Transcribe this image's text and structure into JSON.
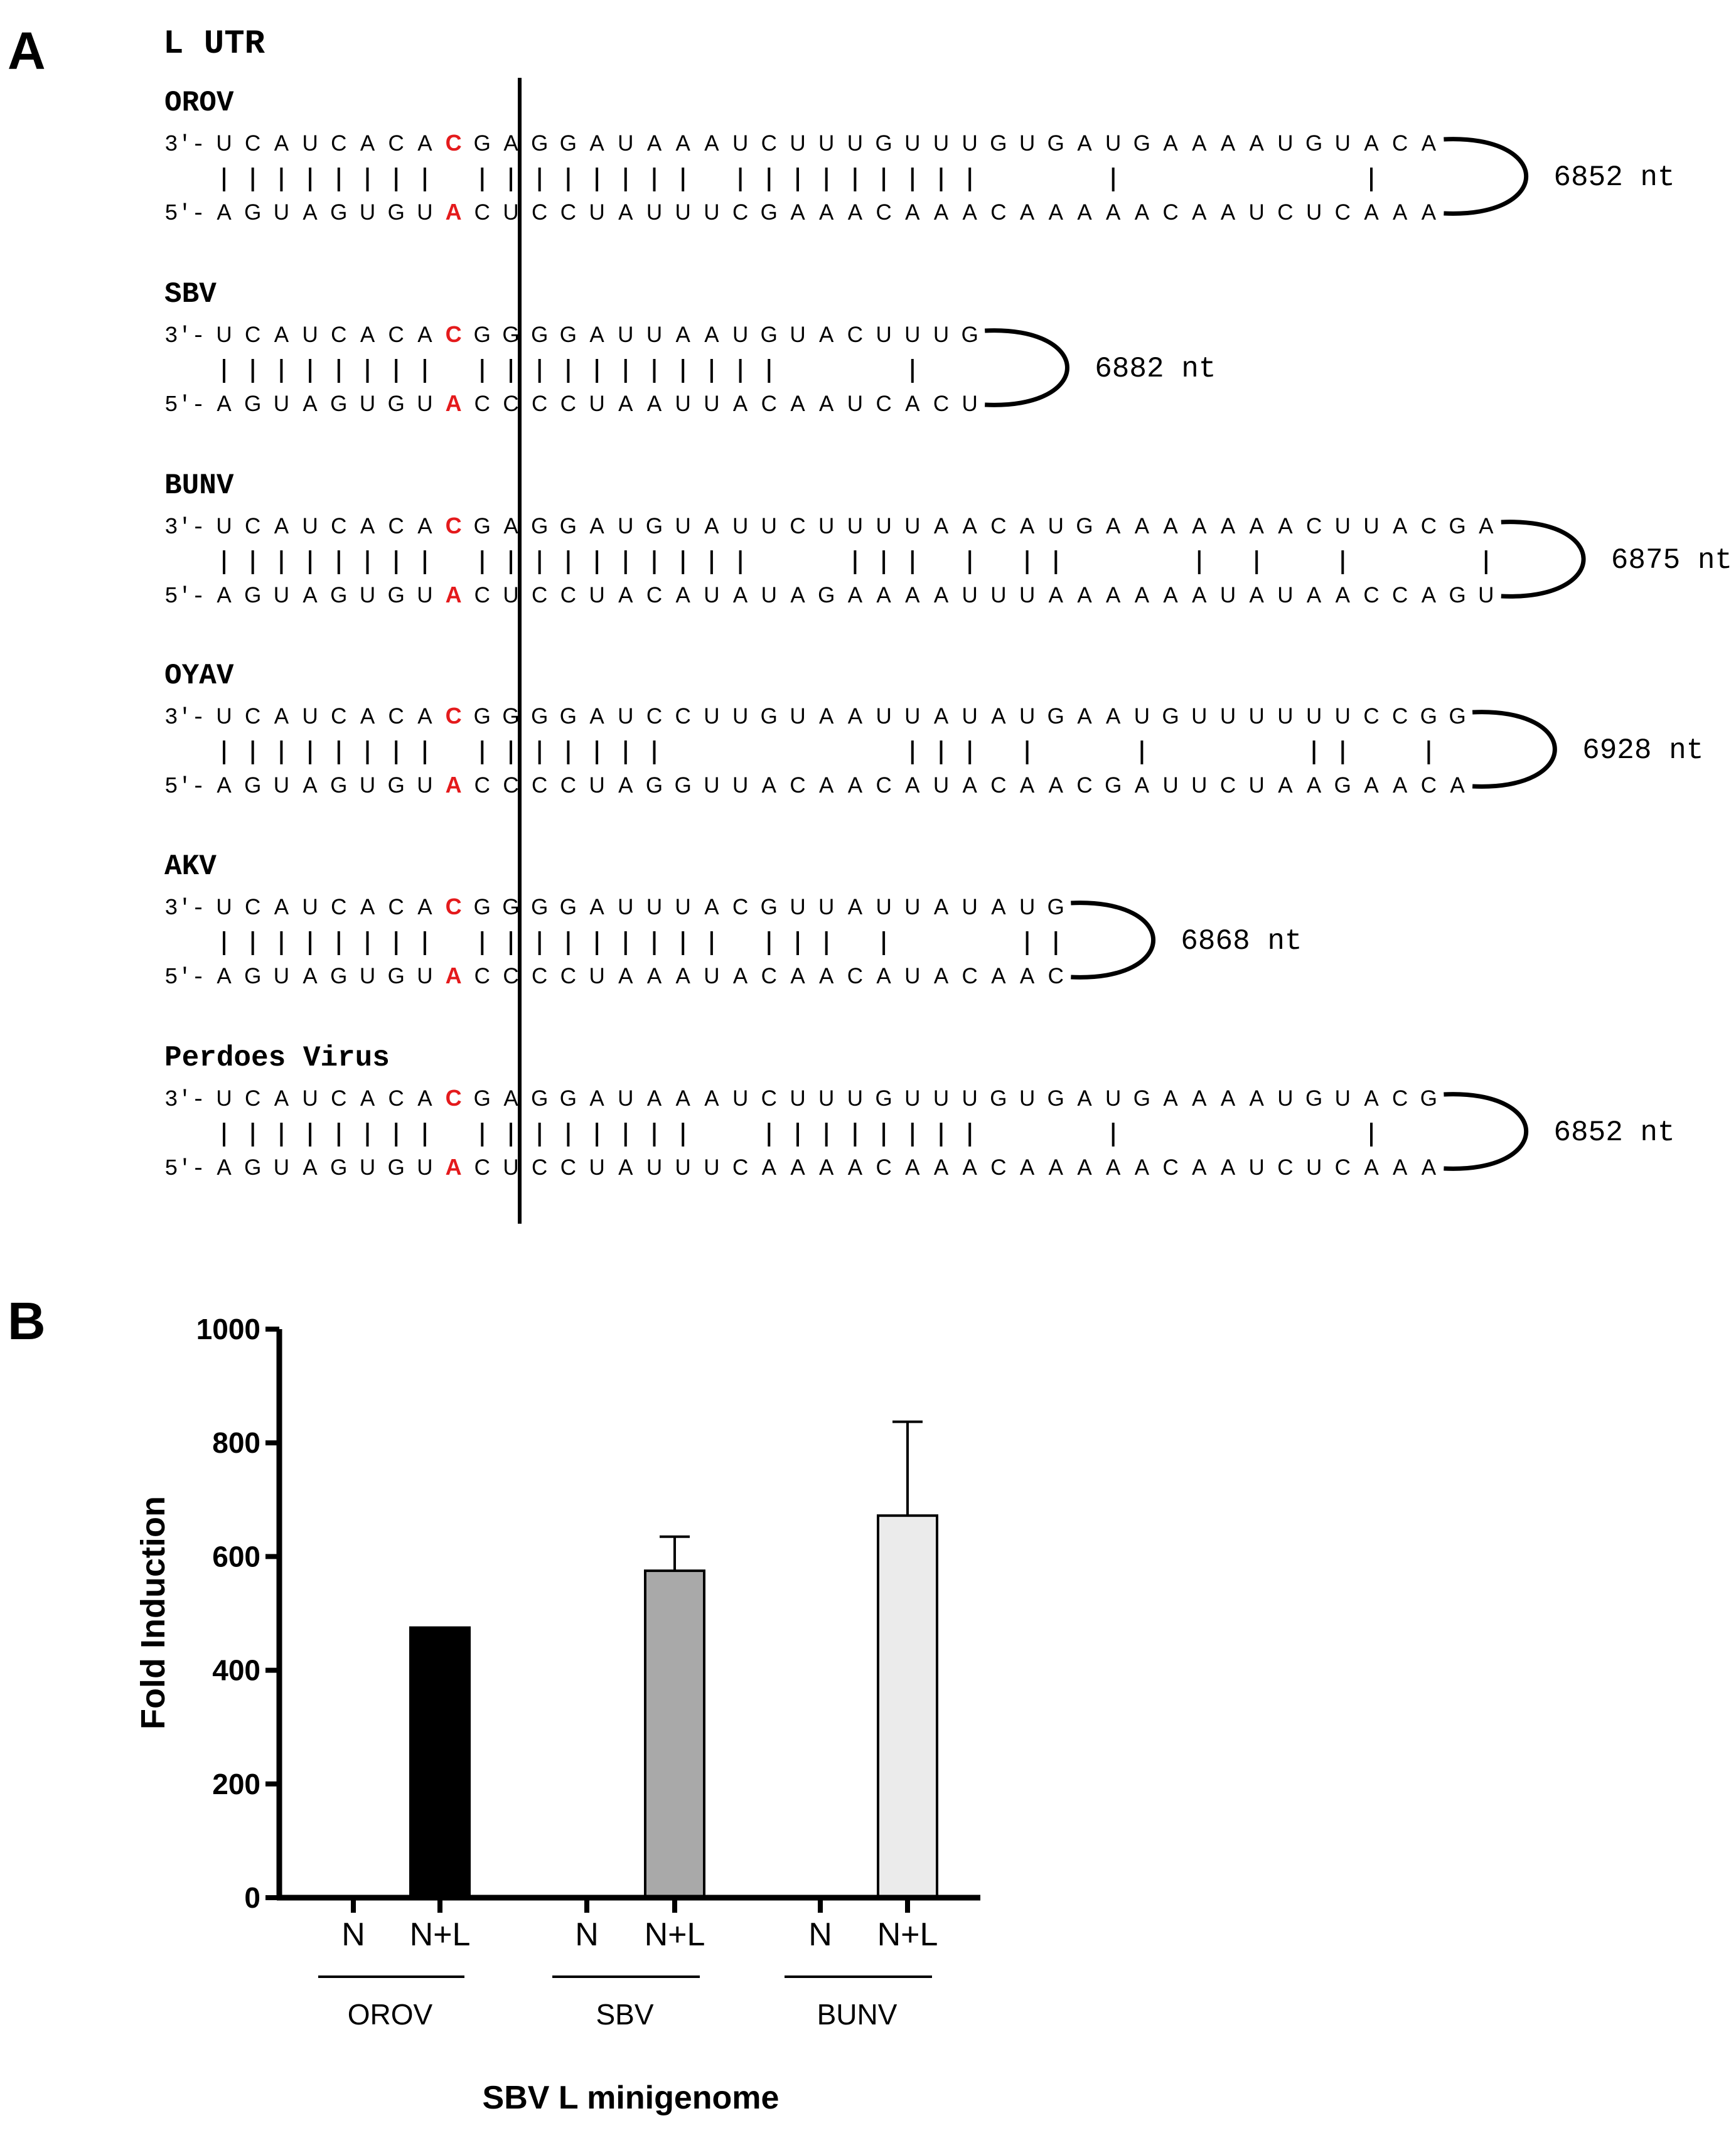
{
  "panels": {
    "a_letter": "A",
    "b_letter": "B",
    "a_title": "L UTR"
  },
  "colors": {
    "highlight": "#e41a1c",
    "ink": "#000000",
    "orov_bar": "#000000",
    "sbv_bar": "#a9a9a9",
    "bunv_bar": "#ebebeb"
  },
  "alignments": [
    {
      "name": "OROV",
      "top_prefix": "3′-",
      "bottom_prefix": "5′-",
      "top": "UCAUCACACGAGGAUAAAUCUUUGUUUGUGAUGAAAAUGUACA",
      "bottom": "AGUAGUGUACUCCUAUUUCGAAACAAACAAAAACAAUCUCAAA",
      "pairs": "1111111101111111101111111110000100000000100",
      "length": "6852 nt"
    },
    {
      "name": "SBV",
      "top_prefix": "3′-",
      "bottom_prefix": "5′-",
      "top": "UCAUCACACGGGGAUUAAUGUACUUUG",
      "bottom": "AGUAGUGUACCCCUAAUUACAAUCACU",
      "pairs": "111111110111111111110000100",
      "length": "6882 nt"
    },
    {
      "name": "BUNV",
      "top_prefix": "3′-",
      "bottom_prefix": "5′-",
      "top": "UCAUCACACGAGGAUGUAUUCUUUUAACAUGAAAAAAACUUACGA",
      "bottom": "AGUAGUGUACUCCUACAUAUAGAAAAUUUAAAAAAUAUAACCAGU",
      "pairs": "111111110111111111100011101011000010100100001",
      "length": "6875 nt"
    },
    {
      "name": "OYAV",
      "top_prefix": "3′-",
      "bottom_prefix": "5′-",
      "top": "UCAUCACACGGGGAUCCUUGUAAUUAUAUGAAUGUUUUUUCCGG",
      "bottom": "AGUAGUGUACCCCUAGGUUACAACAUACAACGAUUCUAAGAACA",
      "pairs": "11111111011111110000000011101000100000110010",
      "length": "6928 nt"
    },
    {
      "name": "AKV",
      "top_prefix": "3′-",
      "bottom_prefix": "5′-",
      "top": "UCAUCACACGGGGAUUUACGUUAUUAUAUG",
      "bottom": "AGUAGUGUACCCCUAAAUACAACAUACAAC",
      "pairs": "111111110111111111011101000011",
      "length": "6868 nt"
    },
    {
      "name": "Perdoes  Virus",
      "top_prefix": "3′-",
      "bottom_prefix": "5′-",
      "top": "UCAUCACACGAGGAUAAAUCUUUGUUUGUGAUGAAAAUGUACG",
      "bottom": "AGUAGUGUACUCCUAUUUCAAAACAAACAAAAACAAUCUCAAA",
      "pairs": "1111111101111111100111111110000100000000100",
      "length": "6852 nt"
    }
  ],
  "chart_data": {
    "type": "bar",
    "title": "",
    "ylabel": "Fold Induction",
    "xlabel": "SBV L minigenome",
    "ylim": [
      0,
      1000
    ],
    "yticks": [
      0,
      200,
      400,
      600,
      800,
      1000
    ],
    "ytick_labels": [
      "0",
      "200",
      "400",
      "600",
      "800",
      "1000"
    ],
    "categories": [
      "N",
      "N+L",
      "N",
      "N+L",
      "N",
      "N+L"
    ],
    "groups": [
      "OROV",
      "SBV",
      "BUNV"
    ],
    "values": [
      0,
      475,
      0,
      575,
      0,
      672
    ],
    "errors": [
      0,
      0,
      0,
      60,
      0,
      165
    ]
  }
}
